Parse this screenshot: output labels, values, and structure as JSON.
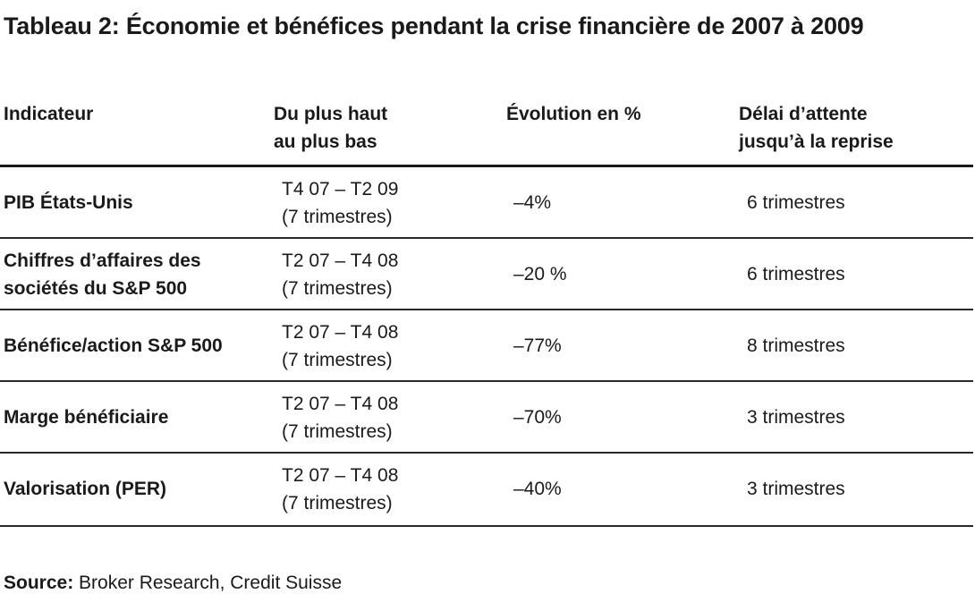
{
  "title": "Tableau 2: Économie et bénéfices pendant la crise financière de 2007 à 2009",
  "table": {
    "headers": {
      "indicator": "Indicateur",
      "period_line1": "Du plus haut",
      "period_line2": "au plus bas",
      "change": "Évolution en %",
      "delay_line1": "Délai d’attente",
      "delay_line2": "jusqu’à la reprise"
    },
    "rows": [
      {
        "indicator": "PIB États-Unis",
        "period_line1": "T4 07 – T2 09",
        "period_line2": "(7 trimestres)",
        "change": "–4%",
        "delay": "6 trimestres"
      },
      {
        "indicator": "Chiffres d’affaires des sociétés du S&P 500",
        "period_line1": "T2 07 – T4 08",
        "period_line2": "(7 trimestres)",
        "change": "–20 %",
        "delay": "6 trimestres"
      },
      {
        "indicator": "Bénéfice/action S&P 500",
        "period_line1": "T2 07 – T4 08",
        "period_line2": "(7 trimestres)",
        "change": "–77%",
        "delay": "8 trimestres"
      },
      {
        "indicator": "Marge bénéficiaire",
        "period_line1": "T2 07 – T4 08",
        "period_line2": "(7 trimestres)",
        "change": "–70%",
        "delay": "3 trimestres"
      },
      {
        "indicator": "Valorisation (PER)",
        "period_line1": "T2 07 – T4 08",
        "period_line2": "(7 trimestres)",
        "change": "–40%",
        "delay": "3 trimestres"
      }
    ]
  },
  "source": {
    "label": "Source:",
    "text": "Broker Research, Credit Suisse"
  }
}
